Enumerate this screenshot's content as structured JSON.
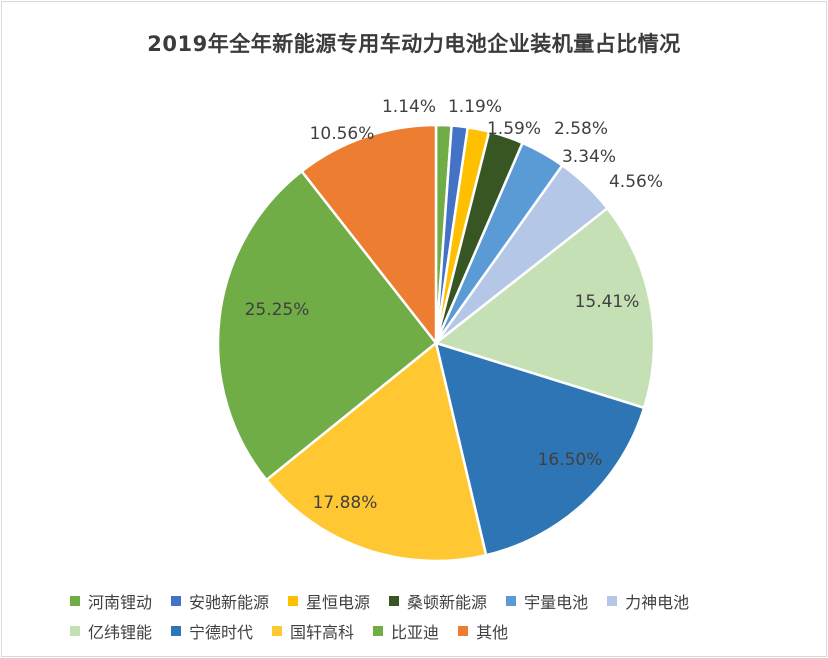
{
  "chart_data": {
    "type": "pie",
    "title": "2019年全年新能源专用车动力电池企业装机量占比情况",
    "legend_position": "bottom",
    "slices": [
      {
        "name": "河南锂动",
        "value": 1.14,
        "label": "1.14%",
        "color": "#70ad47"
      },
      {
        "name": "安驰新能源",
        "value": 1.19,
        "label": "1.19%",
        "color": "#4472c4"
      },
      {
        "name": "星恒电源",
        "value": 1.59,
        "label": "1.59%",
        "color": "#ffc000"
      },
      {
        "name": "桑顿新能源",
        "value": 2.58,
        "label": "2.58%",
        "color": "#375623"
      },
      {
        "name": "宇量电池",
        "value": 3.34,
        "label": "3.34%",
        "color": "#5b9bd5"
      },
      {
        "name": "力神电池",
        "value": 4.56,
        "label": "4.56%",
        "color": "#b4c7e7"
      },
      {
        "name": "亿纬锂能",
        "value": 15.41,
        "label": "15.41%",
        "color": "#c5e0b4"
      },
      {
        "name": "宁德时代",
        "value": 16.5,
        "label": "16.50%",
        "color": "#2e75b6"
      },
      {
        "name": "国轩高科",
        "value": 17.88,
        "label": "17.88%",
        "color": "#ffc832"
      },
      {
        "name": "比亚迪",
        "value": 25.25,
        "label": "25.25%",
        "color": "#70ad47"
      },
      {
        "name": "其他",
        "value": 10.56,
        "label": "10.56%",
        "color": "#ed7d31"
      }
    ]
  }
}
